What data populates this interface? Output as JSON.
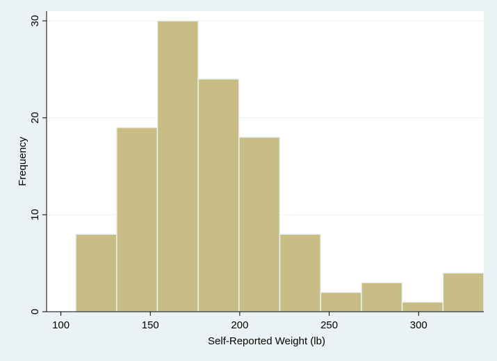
{
  "chart_data": {
    "type": "bar",
    "bins": [
      {
        "start": 108.33,
        "end": 131.14,
        "value": 8
      },
      {
        "start": 131.14,
        "end": 153.95,
        "value": 19
      },
      {
        "start": 153.95,
        "end": 176.76,
        "value": 30
      },
      {
        "start": 176.76,
        "end": 199.57,
        "value": 24
      },
      {
        "start": 199.57,
        "end": 222.38,
        "value": 18
      },
      {
        "start": 222.38,
        "end": 245.19,
        "value": 8
      },
      {
        "start": 245.19,
        "end": 268.0,
        "value": 2
      },
      {
        "start": 268.0,
        "end": 290.81,
        "value": 3
      },
      {
        "start": 290.81,
        "end": 313.62,
        "value": 1
      },
      {
        "start": 313.62,
        "end": 336.43,
        "value": 4
      }
    ],
    "xlabel": "Self-Reported Weight (lb)",
    "ylabel": "Frequency",
    "xlim": [
      92,
      336.43
    ],
    "ylim": [
      0,
      30
    ],
    "x_ticks": [
      100,
      150,
      200,
      250,
      300
    ],
    "y_ticks": [
      0,
      10,
      20,
      30
    ],
    "grid": true,
    "colors": {
      "bar_fill": "#c8bd85",
      "bar_edge": "#eaf2f3",
      "plot_background": "#ffffff",
      "page_background": "#eaf2f3",
      "grid": "#eaf2f3"
    }
  }
}
